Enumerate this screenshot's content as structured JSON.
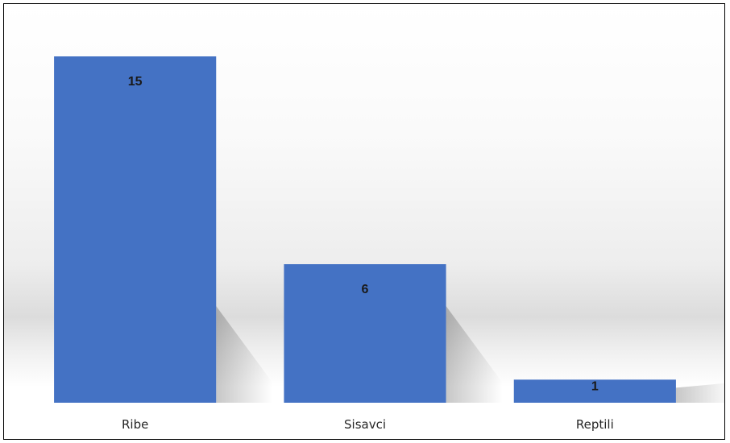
{
  "chart_data": {
    "type": "bar",
    "categories": [
      "Ribe",
      "Sisavci",
      "Reptili"
    ],
    "values": [
      15,
      6,
      1
    ],
    "data_labels": [
      "15",
      "6",
      "1"
    ],
    "title": "",
    "xlabel": "",
    "ylabel": "",
    "ylim": [
      0,
      15
    ],
    "grid": false,
    "legend": "none",
    "colors": {
      "bar": "#4472c4",
      "bar_dark": "#3a63ad",
      "border": "#000000"
    }
  }
}
